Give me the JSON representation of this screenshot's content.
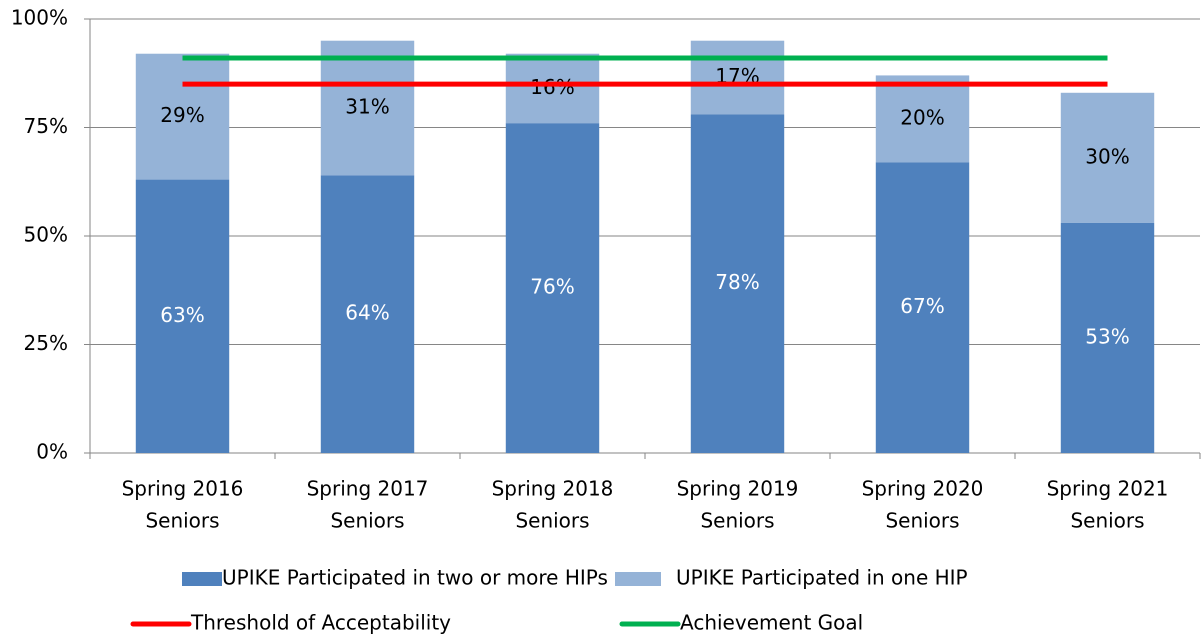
{
  "chart_data": {
    "type": "bar",
    "stacked": true,
    "categories": [
      [
        "Spring 2016",
        "Seniors"
      ],
      [
        "Spring 2017",
        "Seniors"
      ],
      [
        "Spring 2018",
        "Seniors"
      ],
      [
        "Spring 2019",
        "Seniors"
      ],
      [
        "Spring 2020",
        "Seniors"
      ],
      [
        "Spring 2021",
        "Seniors"
      ]
    ],
    "series": [
      {
        "name": "UPIKE Participated in two or more HIPs",
        "type": "bar",
        "color": "#4f81bd",
        "label_color": "#ffffff",
        "values": [
          63,
          64,
          76,
          78,
          67,
          53
        ],
        "value_labels": [
          "63%",
          "64%",
          "76%",
          "78%",
          "67%",
          "53%"
        ]
      },
      {
        "name": "UPIKE Participated in one HIP",
        "type": "bar",
        "color": "#95b3d7",
        "label_color": "#000000",
        "values": [
          29,
          31,
          16,
          17,
          20,
          30
        ],
        "value_labels": [
          "29%",
          "31%",
          "16%",
          "17%",
          "20%",
          "30%"
        ]
      },
      {
        "name": "Threshold of Acceptability",
        "type": "line",
        "color": "#ff0000",
        "values": [
          85,
          85,
          85,
          85,
          85,
          85
        ]
      },
      {
        "name": "Achievement Goal",
        "type": "line",
        "color": "#00b050",
        "values": [
          91,
          91,
          91,
          91,
          91,
          91
        ]
      }
    ],
    "ylim": [
      0,
      100
    ],
    "yticks": [
      {
        "value": 0,
        "label": "0%"
      },
      {
        "value": 25,
        "label": "25%"
      },
      {
        "value": 50,
        "label": "50%"
      },
      {
        "value": 75,
        "label": "75%"
      },
      {
        "value": 100,
        "label": "100%"
      }
    ],
    "grid": true,
    "legend": "bottom"
  }
}
